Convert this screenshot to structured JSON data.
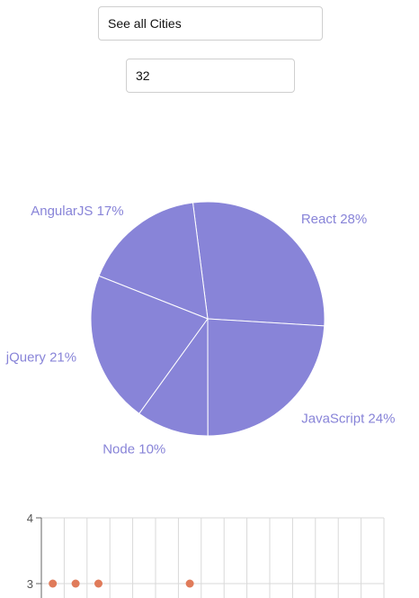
{
  "controls": {
    "city_select_value": "See all Cities",
    "number_input_value": "32"
  },
  "colors": {
    "pie_fill": "#8884d8",
    "pie_stroke": "#ffffff",
    "pie_label": "#8884d8",
    "scatter_point": "#e07b5a",
    "grid": "#d9d9d9",
    "axis": "#666666"
  },
  "chart_data": [
    {
      "type": "pie",
      "slices": [
        {
          "name": "React",
          "value": 28,
          "label": "React 28%"
        },
        {
          "name": "AngularJS",
          "value": 17,
          "label": "AngularJS 17%"
        },
        {
          "name": "jQuery",
          "value": 21,
          "label": "jQuery 21%"
        },
        {
          "name": "Node",
          "value": 10,
          "label": "Node 10%"
        },
        {
          "name": "JavaScript",
          "value": 24,
          "label": "JavaScript 24%"
        }
      ]
    },
    {
      "type": "scatter",
      "ylim": [
        2.9,
        4
      ],
      "yticks": [
        "4",
        "3"
      ],
      "xlim": [
        0,
        15
      ],
      "points": [
        {
          "x": 0.5,
          "y": 3
        },
        {
          "x": 1.5,
          "y": 3
        },
        {
          "x": 2.5,
          "y": 3
        },
        {
          "x": 6.5,
          "y": 3
        }
      ],
      "grid": true
    }
  ]
}
